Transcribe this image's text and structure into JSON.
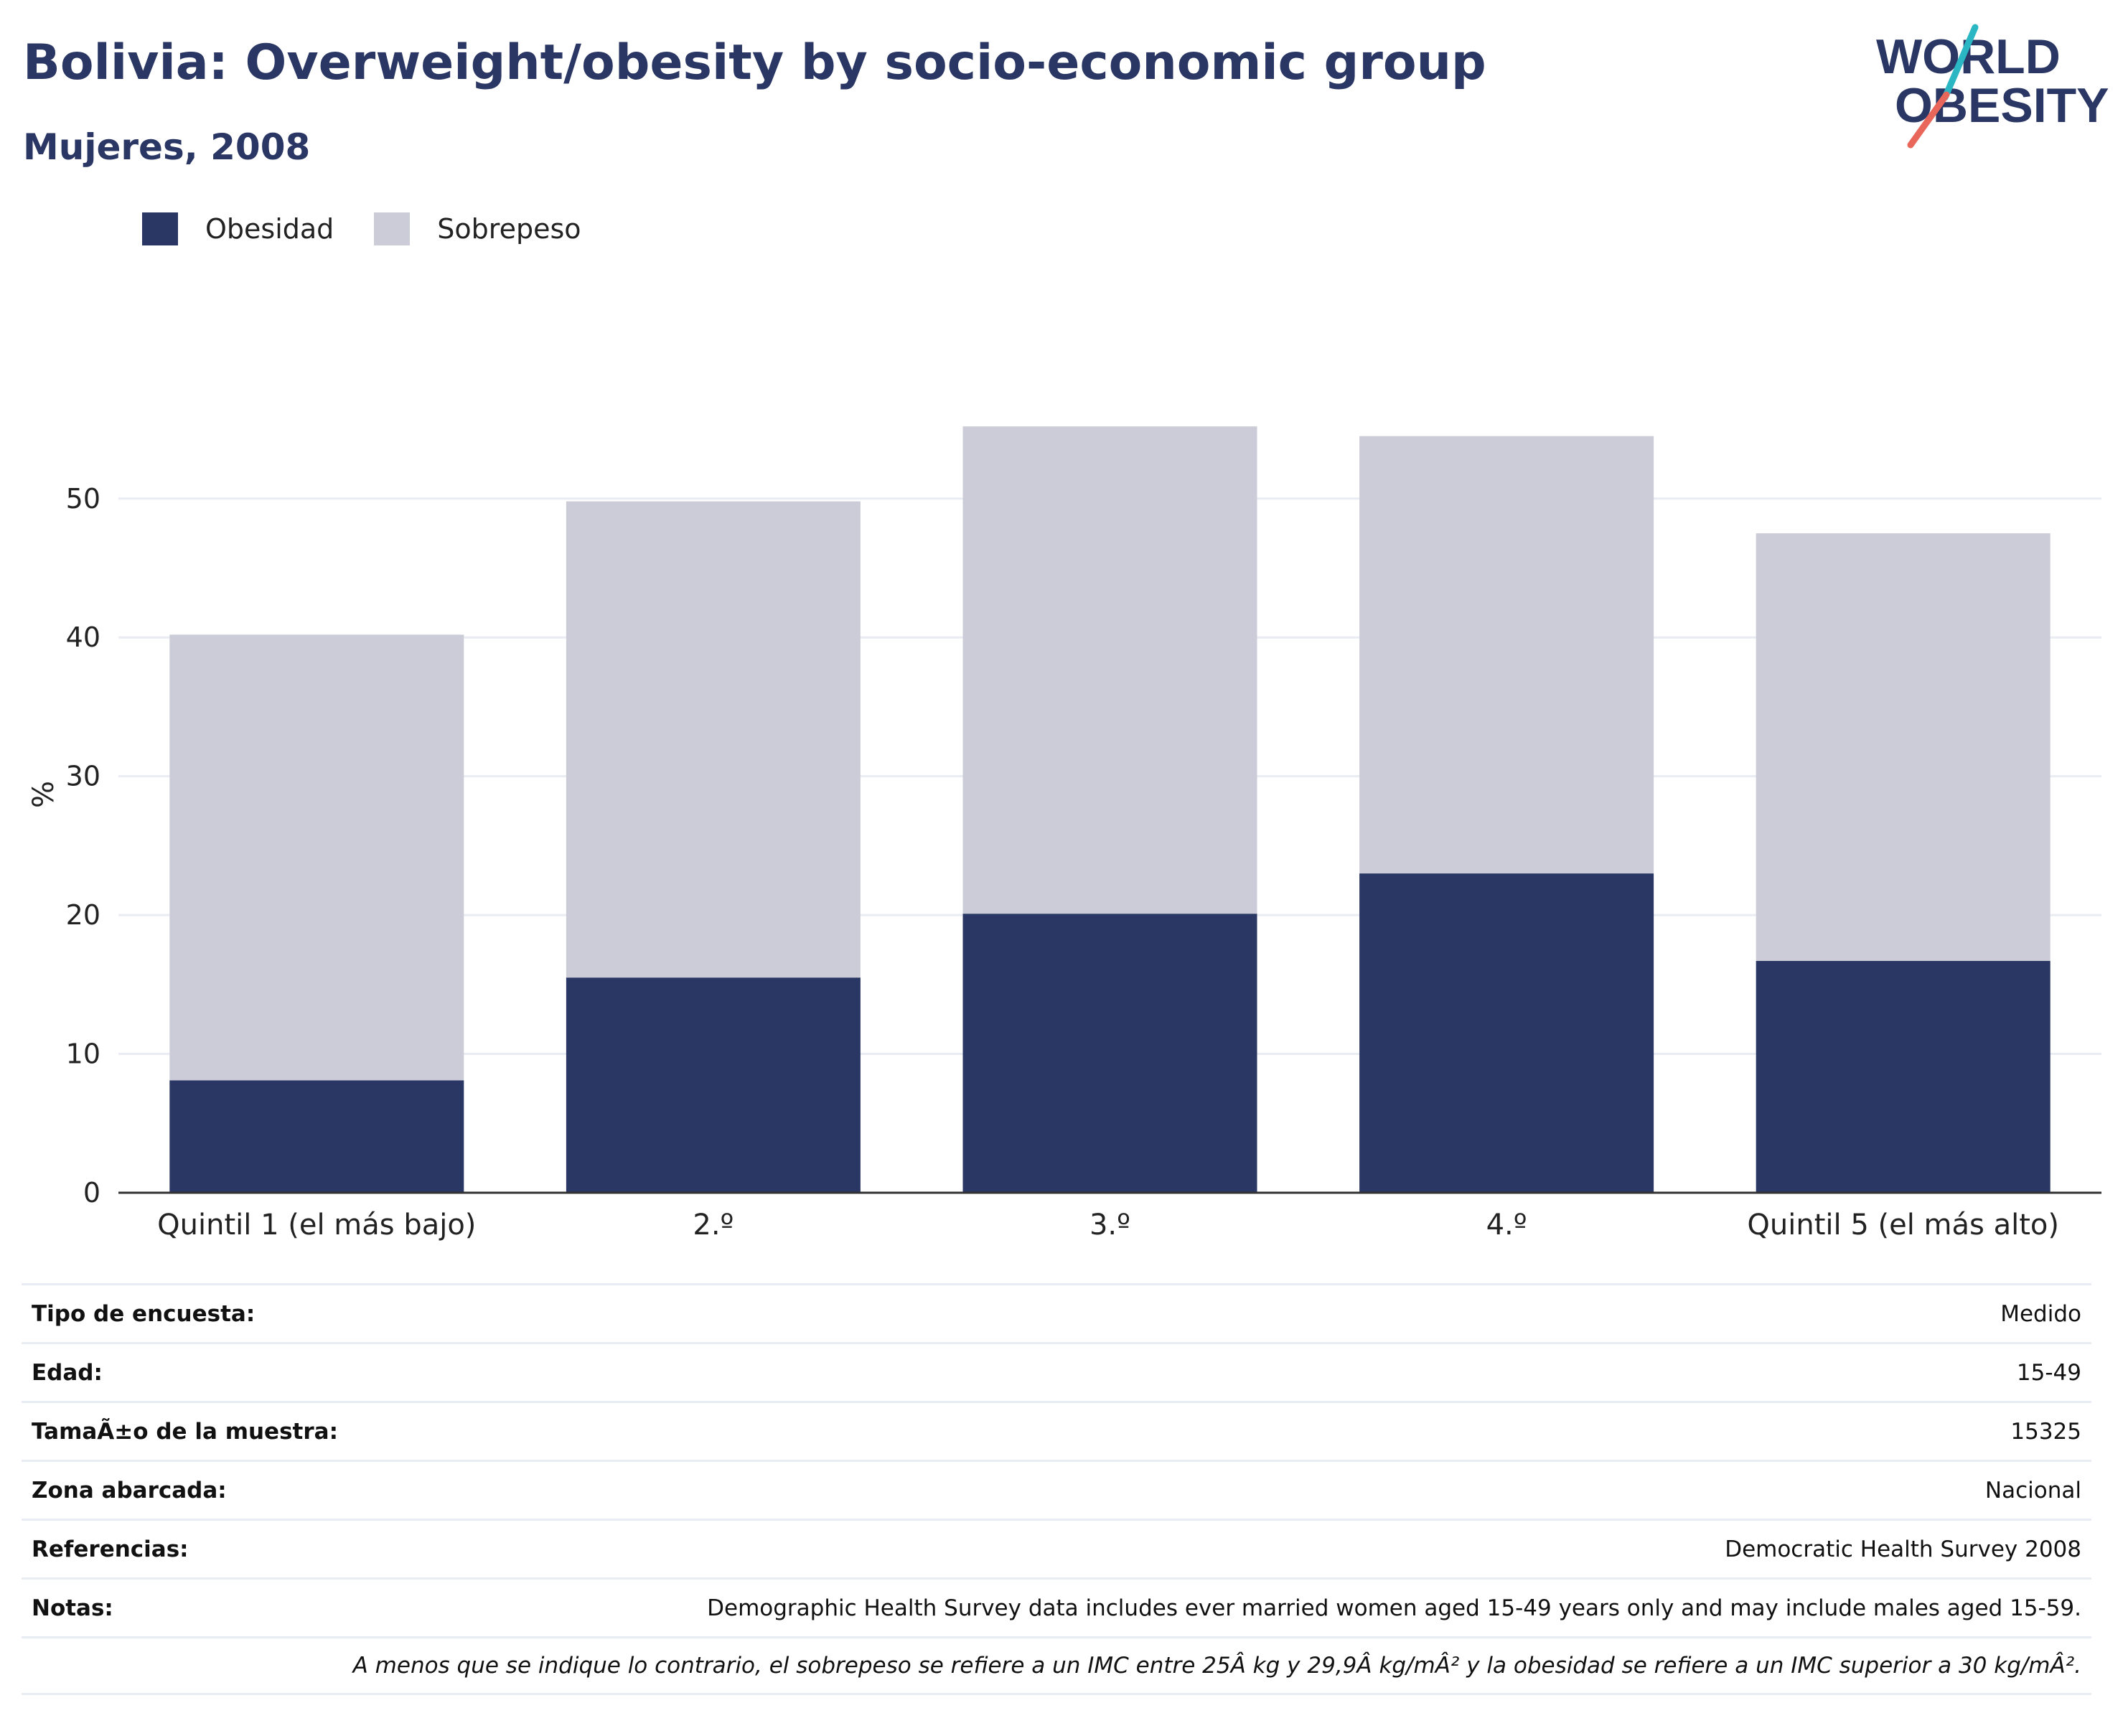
{
  "header": {
    "title": "Bolivia: Overweight/obesity by socio-economic group",
    "subtitle": "Mujeres, 2008",
    "logo_line1": "WORLD",
    "logo_line2": "OBESITY"
  },
  "colors": {
    "obesity": "#2a3663",
    "overweight": "#cbccd8",
    "axis": "#333333",
    "grid": "#e9ecf2",
    "logo_text": "#2a3663",
    "logo_slash_top": "#2ab6c3",
    "logo_slash_bottom": "#e9665a"
  },
  "chart_data": {
    "type": "bar",
    "stacked": true,
    "categories": [
      "Quintil 1 (el más bajo)",
      "2.º",
      "3.º",
      "4.º",
      "Quintil 5 (el más alto)"
    ],
    "series": [
      {
        "name": "Obesidad",
        "values": [
          8.1,
          15.5,
          20.1,
          23.0,
          16.7
        ]
      },
      {
        "name": "Sobrepeso",
        "values": [
          32.1,
          34.3,
          35.1,
          31.5,
          30.8
        ]
      }
    ],
    "ylabel": "%",
    "ylim": [
      0,
      58
    ],
    "yticks": [
      0,
      10,
      20,
      30,
      40,
      50
    ],
    "grid": true,
    "legend_position": "top-left"
  },
  "metadata": [
    {
      "key": "Tipo de encuesta:",
      "value": "Medido"
    },
    {
      "key": "Edad:",
      "value": "15-49"
    },
    {
      "key": "TamaÃ±o de la muestra:",
      "value": "15325"
    },
    {
      "key": "Zona abarcada:",
      "value": "Nacional"
    },
    {
      "key": "Referencias:",
      "value": "Democratic Health Survey 2008"
    },
    {
      "key": "Notas:",
      "value": "Demographic Health Survey data includes ever married women aged 15-49 years only and may include males aged 15-59."
    }
  ],
  "footnote": "A menos que se indique lo contrario, el sobrepeso se refiere a un IMC entre 25Â kg y 29,9Â kg/mÂ² y la obesidad se refiere a un IMC superior a 30 kg/mÂ²."
}
